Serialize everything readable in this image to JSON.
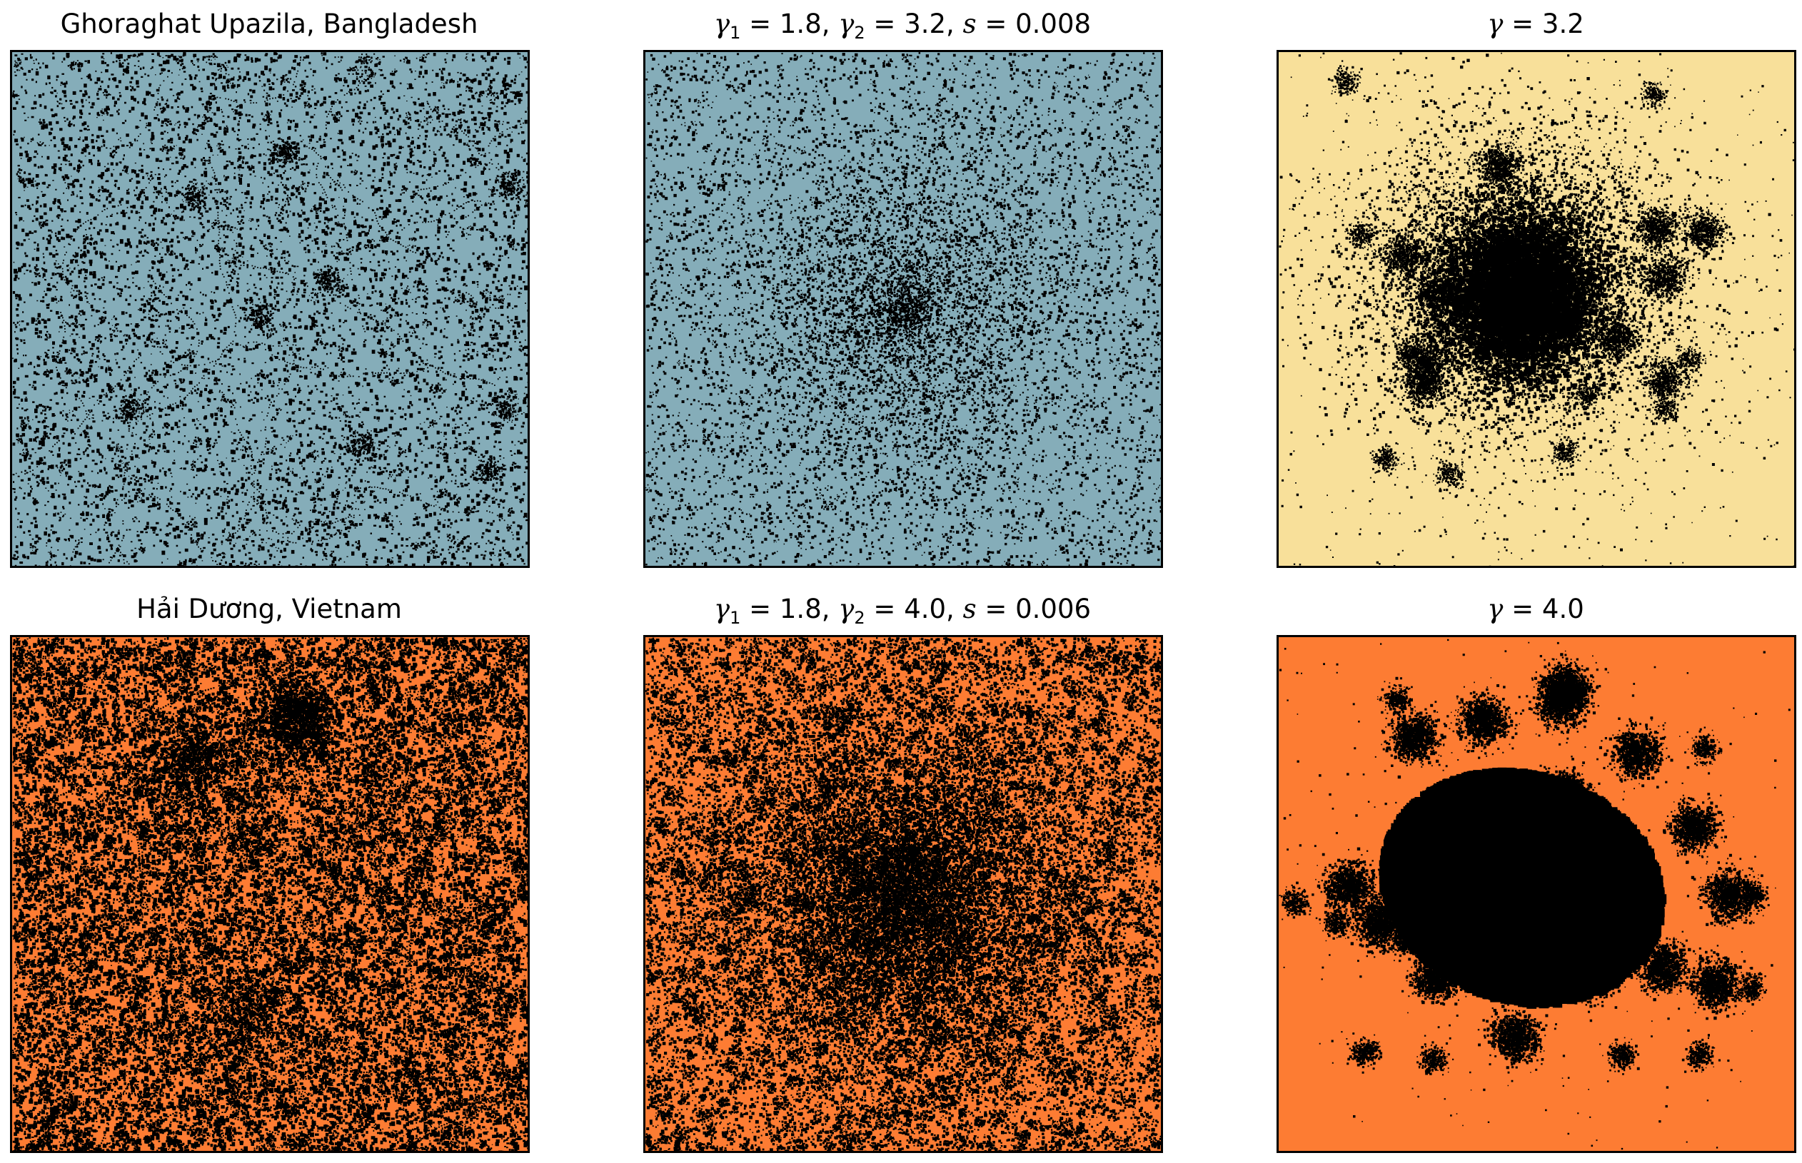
{
  "panels": [
    {
      "title": "Ghoraghat Upazila, Bangladesh",
      "background": "#85adb9",
      "pattern": "rural-real",
      "seed": 11
    },
    {
      "title_parts": {
        "g1": "1.8",
        "g2": "3.2",
        "s": "0.008"
      },
      "background": "#85adb9",
      "pattern": "sparse-model",
      "seed": 23
    },
    {
      "title_parts": {
        "g": "3.2"
      },
      "background": "#f8e09a",
      "pattern": "cluster-small",
      "seed": 37
    },
    {
      "title": "Hải Dương, Vietnam",
      "background": "#fd7c33",
      "pattern": "dense-real",
      "seed": 41
    },
    {
      "title_parts": {
        "g1": "1.8",
        "g2": "4.0",
        "s": "0.006"
      },
      "background": "#fd7c33",
      "pattern": "dense-model",
      "seed": 53
    },
    {
      "title_parts": {
        "g": "4.0"
      },
      "background": "#fd7c33",
      "pattern": "cluster-big",
      "seed": 67
    }
  ],
  "math_symbols": {
    "gamma": "γ",
    "equals": " = ",
    "sep": ", ",
    "one": "1",
    "two": "2",
    "s": "s"
  }
}
